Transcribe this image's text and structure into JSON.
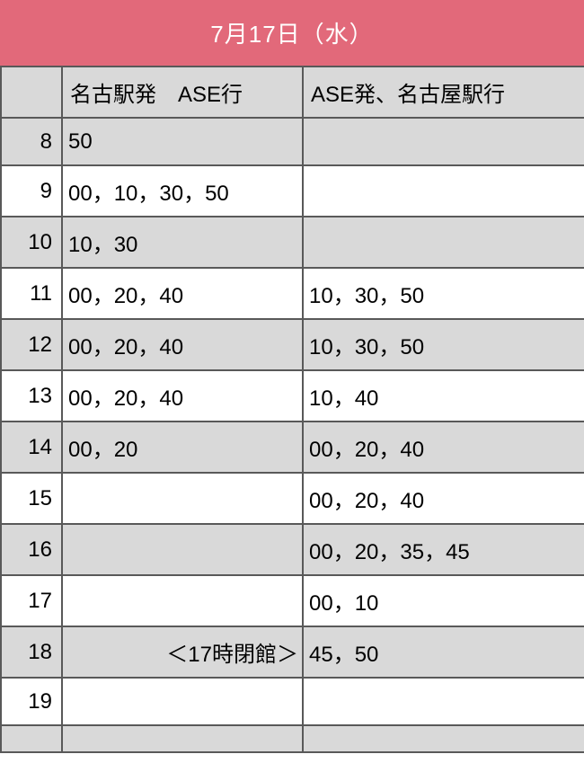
{
  "header": {
    "title": "7月17日（水）",
    "bg_color": "#e2697a",
    "text_color": "#ffffff"
  },
  "table": {
    "border_color": "#595959",
    "alt_bg_color": "#d9d9d9",
    "bg_color": "#ffffff",
    "text_color": "#000000",
    "columns": {
      "hour": "",
      "departure": "名古駅発　ASE行",
      "return": "ASE発、名古屋駅行"
    },
    "rows": [
      {
        "hour": "8",
        "departure": "50",
        "return": "",
        "shaded": true
      },
      {
        "hour": "9",
        "departure": "00，10，30，50",
        "return": "",
        "shaded": false
      },
      {
        "hour": "10",
        "departure": "10，30",
        "return": "",
        "shaded": true
      },
      {
        "hour": "11",
        "departure": "00，20，40",
        "return": "10，30，50",
        "shaded": false
      },
      {
        "hour": "12",
        "departure": "00，20，40",
        "return": "10，30，50",
        "shaded": true
      },
      {
        "hour": "13",
        "departure": "00，20，40",
        "return": "10，40",
        "shaded": false
      },
      {
        "hour": "14",
        "departure": "00，20",
        "return": "00，20，40",
        "shaded": true
      },
      {
        "hour": "15",
        "departure": "",
        "return": "00，20，40",
        "shaded": false
      },
      {
        "hour": "16",
        "departure": "",
        "return": "00，20，35，45",
        "shaded": true
      },
      {
        "hour": "17",
        "departure": "",
        "return": "00，10",
        "shaded": false
      },
      {
        "hour": "18",
        "departure": "＜17時閉館＞",
        "return": "45，50",
        "shaded": true,
        "note": true
      },
      {
        "hour": "19",
        "departure": "",
        "return": "",
        "shaded": false
      },
      {
        "hour": "",
        "departure": "",
        "return": "",
        "shaded": true,
        "short": true
      }
    ]
  }
}
